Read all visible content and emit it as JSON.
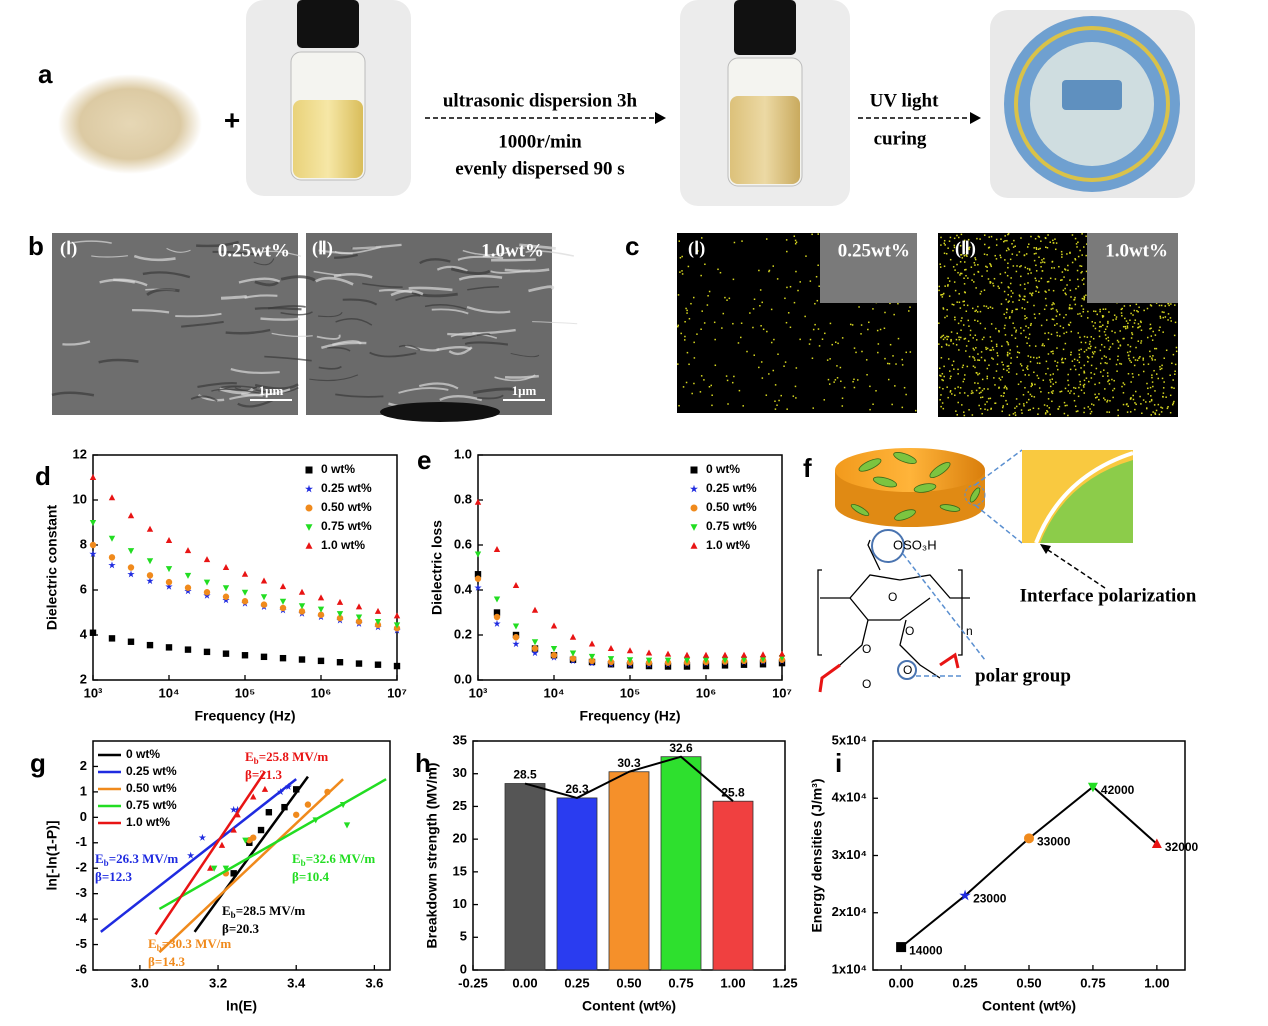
{
  "panel_a": {
    "label": "a",
    "plus": "+",
    "step1": [
      "ultrasonic dispersion 3h",
      "1000r/min",
      "evenly dispersed  90 s"
    ],
    "step2": [
      "UV light",
      "curing"
    ]
  },
  "panel_b": {
    "label": "b",
    "images": [
      {
        "tag": "(Ⅰ)",
        "content": "0.25wt%",
        "scale": "1μm"
      },
      {
        "tag": "(Ⅱ)",
        "content": "1.0wt%",
        "scale": "1μm"
      }
    ]
  },
  "panel_c": {
    "label": "c",
    "images": [
      {
        "tag": "(Ⅰ)",
        "content": "0.25wt%"
      },
      {
        "tag": "(Ⅱ)",
        "content": "1.0wt%"
      }
    ]
  },
  "panel_f": {
    "label": "f",
    "group": "OSO₃H",
    "atom": "O",
    "repeat": "n",
    "interface": "Interface polarization",
    "polar": "polar group"
  },
  "chart_data": [
    {
      "panel": "d",
      "type": "scatter",
      "xscale": "log",
      "xlabel": "Frequency (Hz)",
      "ylabel": "Dielectric constant",
      "legend": "upper right",
      "x": [
        1000,
        1778,
        3162,
        5623,
        10000,
        17783,
        31623,
        56234,
        100000,
        177828,
        316228,
        562341,
        1000000,
        1778279,
        3162278,
        5623413,
        10000000
      ],
      "xlim": [
        1000,
        10000000
      ],
      "xticks": [
        {
          "value": 1000,
          "label": "10³"
        },
        {
          "value": 10000,
          "label": "10⁴"
        },
        {
          "value": 100000,
          "label": "10⁵"
        },
        {
          "value": 1000000,
          "label": "10⁶"
        },
        {
          "value": 10000000,
          "label": "10⁷"
        }
      ],
      "ylim": [
        2,
        12
      ],
      "yticks": [
        2,
        4,
        6,
        8,
        10,
        12
      ],
      "series": [
        {
          "name": "0 wt%",
          "color": "#000000",
          "marker": "square",
          "values": [
            4.1,
            3.85,
            3.7,
            3.55,
            3.45,
            3.35,
            3.25,
            3.17,
            3.1,
            3.03,
            2.97,
            2.91,
            2.85,
            2.79,
            2.73,
            2.68,
            2.62
          ]
        },
        {
          "name": "0.25 wt%",
          "color": "#1f2be0",
          "marker": "star",
          "values": [
            7.6,
            7.1,
            6.7,
            6.4,
            6.15,
            5.95,
            5.75,
            5.55,
            5.4,
            5.25,
            5.1,
            4.95,
            4.8,
            4.65,
            4.5,
            4.35,
            4.2
          ]
        },
        {
          "name": "0.50 wt%",
          "color": "#f08a1c",
          "marker": "circle",
          "values": [
            8.0,
            7.45,
            7.0,
            6.65,
            6.35,
            6.1,
            5.9,
            5.7,
            5.5,
            5.35,
            5.2,
            5.05,
            4.9,
            4.75,
            4.6,
            4.45,
            4.3
          ]
        },
        {
          "name": "0.75 wt%",
          "color": "#22dd22",
          "marker": "triangle-down",
          "values": [
            9.0,
            8.3,
            7.75,
            7.3,
            6.95,
            6.65,
            6.35,
            6.1,
            5.9,
            5.7,
            5.5,
            5.3,
            5.15,
            4.95,
            4.8,
            4.6,
            4.45
          ]
        },
        {
          "name": "1.0 wt%",
          "color": "#e81414",
          "marker": "triangle-up",
          "values": [
            11.0,
            10.1,
            9.3,
            8.7,
            8.2,
            7.75,
            7.35,
            7.0,
            6.7,
            6.4,
            6.15,
            5.9,
            5.65,
            5.45,
            5.25,
            5.05,
            4.85
          ]
        }
      ]
    },
    {
      "panel": "e",
      "type": "scatter",
      "xscale": "log",
      "xlabel": "Frequency (Hz)",
      "ylabel": "Dielectric loss",
      "legend": "upper right",
      "x": [
        1000,
        1778,
        3162,
        5623,
        10000,
        17783,
        31623,
        56234,
        100000,
        177828,
        316228,
        562341,
        1000000,
        1778279,
        3162278,
        5623413,
        10000000
      ],
      "xlim": [
        1000,
        10000000
      ],
      "xticks": [
        {
          "value": 1000,
          "label": "10³"
        },
        {
          "value": 10000,
          "label": "10⁴"
        },
        {
          "value": 100000,
          "label": "10⁵"
        },
        {
          "value": 1000000,
          "label": "10⁶"
        },
        {
          "value": 10000000,
          "label": "10⁷"
        }
      ],
      "ylim": [
        0,
        1
      ],
      "yticks": [
        {
          "value": 0,
          "label": "0.0"
        },
        0.2,
        0.4,
        0.6,
        0.8,
        {
          "value": 1,
          "label": "1.0"
        }
      ],
      "series": [
        {
          "name": "0 wt%",
          "color": "#000000",
          "marker": "square",
          "values": [
            0.47,
            0.3,
            0.2,
            0.14,
            0.11,
            0.09,
            0.08,
            0.07,
            0.065,
            0.062,
            0.06,
            0.06,
            0.062,
            0.065,
            0.068,
            0.07,
            0.075
          ]
        },
        {
          "name": "0.25 wt%",
          "color": "#1f2be0",
          "marker": "star",
          "values": [
            0.41,
            0.25,
            0.16,
            0.12,
            0.1,
            0.085,
            0.075,
            0.07,
            0.068,
            0.068,
            0.07,
            0.072,
            0.075,
            0.078,
            0.08,
            0.082,
            0.085
          ]
        },
        {
          "name": "0.50 wt%",
          "color": "#f08a1c",
          "marker": "circle",
          "values": [
            0.45,
            0.28,
            0.19,
            0.14,
            0.11,
            0.095,
            0.085,
            0.08,
            0.078,
            0.077,
            0.077,
            0.078,
            0.08,
            0.082,
            0.085,
            0.088,
            0.09
          ]
        },
        {
          "name": "0.75 wt%",
          "color": "#22dd22",
          "marker": "triangle-down",
          "values": [
            0.56,
            0.36,
            0.24,
            0.17,
            0.14,
            0.12,
            0.105,
            0.095,
            0.09,
            0.088,
            0.088,
            0.088,
            0.09,
            0.09,
            0.092,
            0.095,
            0.1
          ]
        },
        {
          "name": "1.0 wt%",
          "color": "#e81414",
          "marker": "triangle-up",
          "values": [
            0.79,
            0.58,
            0.42,
            0.31,
            0.24,
            0.19,
            0.16,
            0.14,
            0.13,
            0.12,
            0.115,
            0.11,
            0.11,
            0.11,
            0.11,
            0.112,
            0.115
          ]
        }
      ]
    },
    {
      "panel": "g",
      "type": "scatter",
      "xlabel": "ln(E)",
      "ylabel": "ln[-ln(1-P)]",
      "legend": "upper left",
      "xlim": [
        2.88,
        3.64
      ],
      "xticks": [
        {
          "value": 3,
          "label": "3.0"
        },
        3.2,
        3.4,
        3.6
      ],
      "ylim": [
        -6,
        3
      ],
      "yticks": [
        -6,
        -5,
        -4,
        -3,
        -2,
        -1,
        0,
        1,
        2
      ],
      "series": [
        {
          "name": "0 wt%",
          "color": "#000000",
          "marker": "square",
          "x": [
            3.24,
            3.28,
            3.31,
            3.33,
            3.37,
            3.4
          ],
          "values": [
            -2.2,
            -1.0,
            -0.5,
            0.2,
            0.4,
            1.1
          ],
          "fit_x": [
            3.14,
            3.43
          ],
          "fit_y": [
            -4.5,
            1.6
          ]
        },
        {
          "name": "0.25 wt%",
          "color": "#1f2be0",
          "marker": "star",
          "x": [
            3.13,
            3.16,
            3.24,
            3.25,
            3.36,
            3.38
          ],
          "values": [
            -1.5,
            -0.8,
            0.3,
            0.3,
            1.0,
            1.2
          ],
          "fit_x": [
            2.9,
            3.4
          ],
          "fit_y": [
            -4.5,
            1.5
          ]
        },
        {
          "name": "0.50 wt%",
          "color": "#f08a1c",
          "marker": "circle",
          "x": [
            3.22,
            3.28,
            3.29,
            3.4,
            3.43,
            3.48
          ],
          "values": [
            -2.2,
            -0.9,
            -0.8,
            0.1,
            0.5,
            1.0
          ],
          "fit_x": [
            3.05,
            3.52
          ],
          "fit_y": [
            -5.3,
            1.5
          ]
        },
        {
          "name": "0.75 wt%",
          "color": "#22dd22",
          "marker": "triangle-down",
          "x": [
            3.19,
            3.22,
            3.27,
            3.45,
            3.52,
            3.53
          ],
          "values": [
            -2.0,
            -2.0,
            -0.9,
            -0.1,
            0.5,
            -0.3
          ],
          "fit_x": [
            3.05,
            3.63
          ],
          "fit_y": [
            -3.6,
            1.5
          ]
        },
        {
          "name": "1.0 wt%",
          "color": "#e81414",
          "marker": "triangle-up",
          "x": [
            3.18,
            3.21,
            3.24,
            3.25,
            3.29,
            3.32
          ],
          "values": [
            -2.0,
            -1.1,
            -0.5,
            0.1,
            0.8,
            1.1
          ],
          "fit_x": [
            3.04,
            3.32
          ],
          "fit_y": [
            -4.6,
            1.8
          ]
        }
      ],
      "annotations": [
        {
          "pre": "E",
          "sub": "b",
          "post": "=28.5 MV/m",
          "beta": "β=20.3",
          "color": "#000000"
        },
        {
          "pre": "E",
          "sub": "b",
          "post": "=26.3 MV/m",
          "beta": "β=12.3",
          "color": "#1f2be0"
        },
        {
          "pre": "E",
          "sub": "b",
          "post": "=30.3 MV/m",
          "beta": "β=14.3",
          "color": "#f08a1c"
        },
        {
          "pre": "E",
          "sub": "b",
          "post": "=32.6 MV/m",
          "beta": "β=10.4",
          "color": "#22dd22"
        },
        {
          "pre": "E",
          "sub": "b",
          "post": "=25.8 MV/m",
          "beta": "β=21.3",
          "color": "#e81414"
        }
      ]
    },
    {
      "panel": "h",
      "type": "bar",
      "xlabel": "Content (wt%)",
      "ylabel": "Breakdown strength (MV/m)",
      "x": [
        0,
        0.25,
        0.5,
        0.75,
        1
      ],
      "values": [
        28.5,
        26.3,
        30.3,
        32.6,
        25.8
      ],
      "colors": [
        "#555555",
        "#2a3cf0",
        "#f5902a",
        "#2ee02e",
        "#f04040"
      ],
      "line_color": "#000000",
      "xlim": [
        -0.25,
        1.25
      ],
      "xticks": [
        -0.25,
        {
          "value": 0,
          "label": "0.00"
        },
        0.25,
        {
          "value": 0.5,
          "label": "0.50"
        },
        0.75,
        {
          "value": 1,
          "label": "1.00"
        },
        1.25
      ],
      "ylim": [
        0,
        35
      ],
      "yticks": [
        0,
        5,
        10,
        15,
        20,
        25,
        30,
        35
      ]
    },
    {
      "panel": "i",
      "type": "line",
      "xlabel": "Content (wt%)",
      "ylabel": "Energy densities (J/m³)",
      "x": [
        0,
        0.25,
        0.5,
        0.75,
        1
      ],
      "values": [
        14000,
        23000,
        33000,
        42000,
        32000
      ],
      "markers": [
        "square",
        "star",
        "circle",
        "triangle-down",
        "triangle-up"
      ],
      "colors": [
        "#000000",
        "#1f2be0",
        "#f08a1c",
        "#22dd22",
        "#e81414"
      ],
      "line_color": "#000000",
      "xlim": [
        -0.11,
        1.11
      ],
      "xticks": [
        {
          "value": 0,
          "label": "0.00"
        },
        0.25,
        {
          "value": 0.5,
          "label": "0.50"
        },
        0.75,
        {
          "value": 1,
          "label": "1.00"
        }
      ],
      "ylim": [
        10000,
        50000
      ],
      "yticks": [
        {
          "value": 10000,
          "label": "1x10⁴"
        },
        {
          "value": 20000,
          "label": "2x10⁴"
        },
        {
          "value": 30000,
          "label": "3x10⁴"
        },
        {
          "value": 40000,
          "label": "4x10⁴"
        },
        {
          "value": 50000,
          "label": "5x10⁴"
        }
      ]
    }
  ]
}
